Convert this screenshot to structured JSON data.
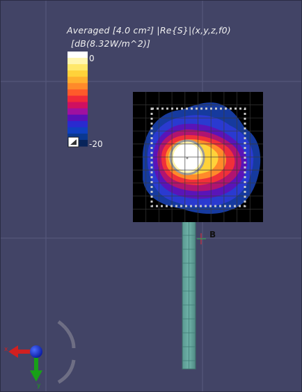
{
  "viewport": {
    "legend": {
      "title_line1": "Averaged [4.0 cm²] |Re{S}|(x,y,z,f0)",
      "title_line2": "[dB(8.32W/m^2)]",
      "max_label": "0",
      "min_label": "-20",
      "colors": [
        "#ffffff",
        "#fff6b0",
        "#ffe86a",
        "#ffd23a",
        "#ffb02e",
        "#ff8a2a",
        "#ff5a2a",
        "#f0283a",
        "#d01060",
        "#a010a0",
        "#5a10b8",
        "#2a2ad0",
        "#1040c0",
        "#0a3890",
        "#08245a"
      ]
    },
    "marker_label": "B",
    "axes": {
      "x_label": "x",
      "y_label": "y"
    },
    "colors": {
      "background": "#424466",
      "grid": "#5a5c80",
      "feed": "#5fa39a"
    }
  }
}
